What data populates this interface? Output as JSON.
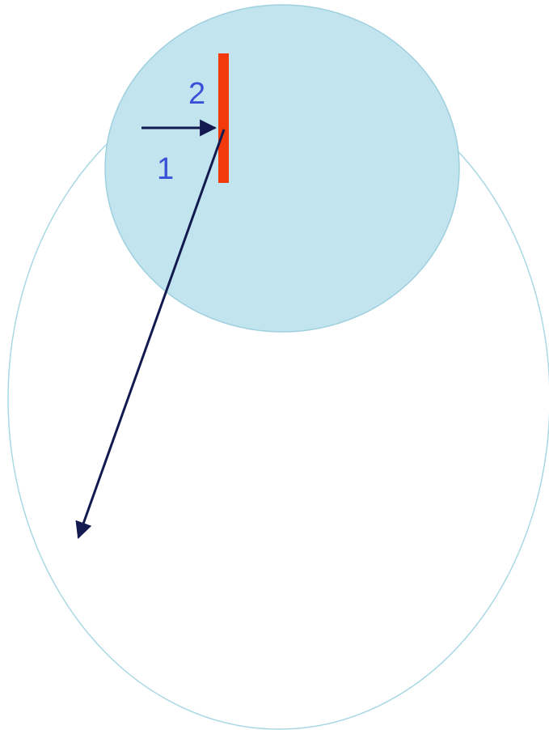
{
  "diagram": {
    "labels": {
      "label_1": "1",
      "label_2": "2"
    },
    "colors": {
      "large_ellipse_stroke": "#a9d8e3",
      "small_circle_fill": "#c2e4ee",
      "small_circle_stroke": "#9fd0df",
      "barrier": "#f23a0c",
      "arrow": "#121a4f",
      "label": "#3a52d8"
    }
  }
}
